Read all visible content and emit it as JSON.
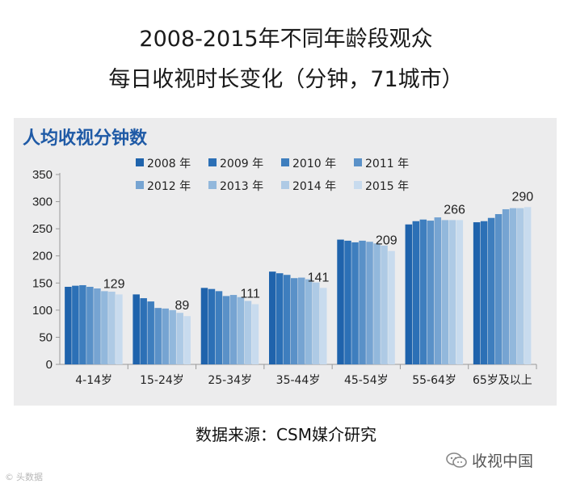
{
  "title_line1": "2008-2015年不同年龄段观众",
  "title_line2": "每日收视时长变化（分钟，71城市）",
  "source": "数据来源：CSM媒介研究",
  "wechat_label": "收视中国",
  "watermark": "头数据",
  "chart_data": {
    "type": "bar",
    "title": "人均收视分钟数",
    "xlabel": "",
    "ylabel": "",
    "ylim": [
      0,
      350
    ],
    "yticks": [
      0,
      50,
      100,
      150,
      200,
      250,
      300,
      350
    ],
    "legend_position": "top",
    "categories": [
      "4-14岁",
      "15-24岁",
      "25-34岁",
      "35-44岁",
      "45-54岁",
      "55-64岁",
      "65岁及以上"
    ],
    "series": [
      {
        "name": "2008 年",
        "color": "#1f63ac",
        "values": [
          143,
          129,
          141,
          171,
          230,
          258,
          262
        ]
      },
      {
        "name": "2009 年",
        "color": "#2c70b6",
        "values": [
          145,
          122,
          139,
          168,
          228,
          264,
          264
        ]
      },
      {
        "name": "2010 年",
        "color": "#3e7ebe",
        "values": [
          146,
          116,
          135,
          165,
          225,
          267,
          270
        ]
      },
      {
        "name": "2011 年",
        "color": "#5a91c8",
        "values": [
          143,
          104,
          126,
          159,
          228,
          265,
          277
        ]
      },
      {
        "name": "2012 年",
        "color": "#76a4d2",
        "values": [
          140,
          103,
          128,
          160,
          226,
          271,
          286
        ]
      },
      {
        "name": "2013 年",
        "color": "#92b8dc",
        "values": [
          135,
          100,
          124,
          157,
          223,
          266,
          288
        ]
      },
      {
        "name": "2014 年",
        "color": "#aecae5",
        "values": [
          134,
          95,
          117,
          151,
          219,
          266,
          288
        ]
      },
      {
        "name": "2015 年",
        "color": "#c8dbee",
        "values": [
          129,
          89,
          111,
          141,
          209,
          266,
          290
        ]
      }
    ],
    "data_labels": [
      "129",
      "89",
      "111",
      "141",
      "209",
      "266",
      "290"
    ]
  }
}
